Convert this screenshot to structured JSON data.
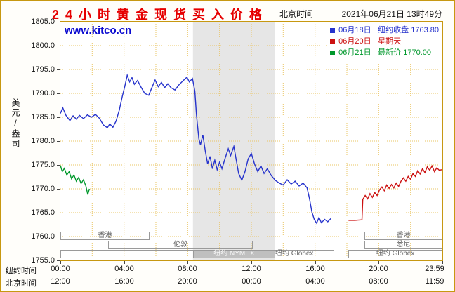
{
  "header": {
    "title": "24小时黄金现货买入价格",
    "timezone_label": "北京时间",
    "datetime": "2021年06月21日 13时49分"
  },
  "watermark": "www.kitco.cn",
  "colors": {
    "border": "#c79810",
    "grid": "#e9c462",
    "shaded_band": "#e6e6e6",
    "title_red": "#e60000",
    "watermark_blue": "#0b0bd0",
    "blue_line": "#2633cc",
    "red_line": "#cc1111",
    "green_line": "#00982c",
    "session_border": "#9a9a9a",
    "nymex_fill": "#bfbfbf"
  },
  "legend": {
    "items": [
      {
        "date": "06月18日",
        "desc": "纽约收盘 1763.80",
        "color": "#2633cc"
      },
      {
        "date": "06月20日",
        "desc": "星期天",
        "color": "#cc1111"
      },
      {
        "date": "06月21日",
        "desc": "最新价 1770.00",
        "color": "#00982c"
      }
    ]
  },
  "y_axis": {
    "label": "美元/盎司",
    "ticks": [
      "1805.0",
      "1800.0",
      "1795.0",
      "1790.0",
      "1785.0",
      "1780.0",
      "1775.0",
      "1770.0",
      "1765.0",
      "1760.0",
      "1755.0"
    ]
  },
  "x_axis": {
    "ny_label": "纽约时间",
    "bj_label": "北京时间",
    "tick_hours": [
      0,
      4,
      8,
      12,
      16,
      20,
      23.983
    ],
    "ny_ticks": [
      "00:00",
      "04:00",
      "08:00",
      "12:00",
      "16:00",
      "20:00",
      "23:59"
    ],
    "bj_ticks": [
      "12:00",
      "16:00",
      "20:00",
      "00:00",
      "04:00",
      "08:00",
      "11:59"
    ]
  },
  "sessions": [
    {
      "label": "香港",
      "row": 0,
      "start": 0,
      "end": 5.6,
      "fill": "none",
      "text": "#666666"
    },
    {
      "label": "香港",
      "row": 0,
      "start": 19.1,
      "end": 24,
      "fill": "none",
      "text": "#666666"
    },
    {
      "label": "伦敦",
      "row": 1,
      "start": 3,
      "end": 12.1,
      "fill": "none",
      "text": "#666666"
    },
    {
      "label": "悉尼",
      "row": 1,
      "start": 19.1,
      "end": 24,
      "fill": "none",
      "text": "#666666"
    },
    {
      "label": "纽约 Globex",
      "row": 2,
      "start": 0,
      "end": 17.2,
      "fill": "none",
      "text": "#666666",
      "label_t": 14.7
    },
    {
      "label": "纽约 NYMEX",
      "row": 2,
      "start": 8.33,
      "end": 13.5,
      "fill": "#bfbfbf",
      "text": "#f6f6f6"
    },
    {
      "label": "纽约 Globex",
      "row": 2,
      "start": 18.1,
      "end": 24,
      "fill": "none",
      "text": "#666666"
    }
  ],
  "chart_data": {
    "type": "line",
    "title": "24小时黄金现货买入价格",
    "ylabel": "美元/盎司",
    "ylim": [
      1755,
      1805
    ],
    "x_range_hours": [
      0,
      24
    ],
    "x_axis_note": "纽约时间 00:00-23:59 / 北京时间 12:00-11:59",
    "ny_close": 1763.8,
    "latest_price": 1770.0,
    "grid": true,
    "y_gridlines": [
      1760,
      1765,
      1770,
      1775,
      1780,
      1785,
      1790,
      1795,
      1800
    ],
    "x_gridlines": [
      2,
      4,
      6,
      8,
      10,
      12,
      14,
      16,
      18,
      20,
      22
    ],
    "shaded_region": {
      "start": 8.33,
      "end": 13.5
    },
    "series": [
      {
        "id": "jun18",
        "name": "06月18日 纽约收盘 1763.80",
        "color": "#2633cc",
        "points": [
          [
            0.0,
            1785.8
          ],
          [
            0.15,
            1787.0
          ],
          [
            0.35,
            1785.4
          ],
          [
            0.6,
            1784.3
          ],
          [
            0.8,
            1785.3
          ],
          [
            1.0,
            1784.6
          ],
          [
            1.2,
            1785.4
          ],
          [
            1.45,
            1784.7
          ],
          [
            1.7,
            1785.5
          ],
          [
            1.95,
            1785.0
          ],
          [
            2.2,
            1785.6
          ],
          [
            2.45,
            1784.8
          ],
          [
            2.7,
            1783.4
          ],
          [
            2.95,
            1782.8
          ],
          [
            3.1,
            1783.6
          ],
          [
            3.3,
            1782.9
          ],
          [
            3.5,
            1784.2
          ],
          [
            3.7,
            1786.5
          ],
          [
            3.9,
            1789.5
          ],
          [
            4.05,
            1791.5
          ],
          [
            4.2,
            1793.8
          ],
          [
            4.35,
            1792.4
          ],
          [
            4.5,
            1793.3
          ],
          [
            4.65,
            1791.9
          ],
          [
            4.85,
            1792.7
          ],
          [
            5.05,
            1791.4
          ],
          [
            5.3,
            1790.0
          ],
          [
            5.55,
            1789.6
          ],
          [
            5.75,
            1791.2
          ],
          [
            5.95,
            1792.8
          ],
          [
            6.15,
            1791.4
          ],
          [
            6.35,
            1792.3
          ],
          [
            6.55,
            1791.2
          ],
          [
            6.75,
            1792.0
          ],
          [
            6.95,
            1791.2
          ],
          [
            7.2,
            1790.7
          ],
          [
            7.45,
            1791.8
          ],
          [
            7.7,
            1792.6
          ],
          [
            7.95,
            1793.4
          ],
          [
            8.1,
            1792.4
          ],
          [
            8.3,
            1793.1
          ],
          [
            8.45,
            1790.5
          ],
          [
            8.55,
            1785.5
          ],
          [
            8.7,
            1780.5
          ],
          [
            8.8,
            1779.2
          ],
          [
            8.95,
            1781.3
          ],
          [
            9.1,
            1778.0
          ],
          [
            9.25,
            1775.2
          ],
          [
            9.4,
            1776.8
          ],
          [
            9.55,
            1774.2
          ],
          [
            9.7,
            1776.0
          ],
          [
            9.85,
            1774.0
          ],
          [
            10.0,
            1775.6
          ],
          [
            10.15,
            1774.2
          ],
          [
            10.35,
            1776.4
          ],
          [
            10.55,
            1778.4
          ],
          [
            10.7,
            1777.0
          ],
          [
            10.9,
            1778.9
          ],
          [
            11.05,
            1776.0
          ],
          [
            11.2,
            1773.2
          ],
          [
            11.4,
            1771.8
          ],
          [
            11.6,
            1773.6
          ],
          [
            11.8,
            1776.3
          ],
          [
            12.0,
            1777.4
          ],
          [
            12.2,
            1775.2
          ],
          [
            12.4,
            1773.6
          ],
          [
            12.6,
            1774.8
          ],
          [
            12.8,
            1773.2
          ],
          [
            13.0,
            1774.2
          ],
          [
            13.25,
            1772.8
          ],
          [
            13.5,
            1771.8
          ],
          [
            13.75,
            1771.2
          ],
          [
            14.0,
            1770.8
          ],
          [
            14.25,
            1771.9
          ],
          [
            14.5,
            1771.0
          ],
          [
            14.75,
            1771.6
          ],
          [
            15.0,
            1770.6
          ],
          [
            15.25,
            1771.2
          ],
          [
            15.5,
            1770.2
          ],
          [
            15.65,
            1768.0
          ],
          [
            15.8,
            1765.2
          ],
          [
            15.95,
            1763.6
          ],
          [
            16.1,
            1762.8
          ],
          [
            16.25,
            1764.0
          ],
          [
            16.4,
            1762.9
          ],
          [
            16.6,
            1763.6
          ],
          [
            16.8,
            1763.1
          ],
          [
            17.0,
            1763.8
          ]
        ]
      },
      {
        "id": "jun20",
        "name": "06月20日 星期天",
        "color": "#cc1111",
        "points": [
          [
            18.1,
            1763.4
          ],
          [
            18.5,
            1763.4
          ],
          [
            18.95,
            1763.5
          ],
          [
            19.0,
            1767.8
          ],
          [
            19.15,
            1768.6
          ],
          [
            19.3,
            1767.9
          ],
          [
            19.45,
            1769.0
          ],
          [
            19.6,
            1768.2
          ],
          [
            19.75,
            1769.2
          ],
          [
            19.9,
            1768.6
          ],
          [
            20.05,
            1769.8
          ],
          [
            20.2,
            1770.4
          ],
          [
            20.35,
            1769.6
          ],
          [
            20.5,
            1770.8
          ],
          [
            20.65,
            1770.1
          ],
          [
            20.8,
            1770.9
          ],
          [
            20.95,
            1770.2
          ],
          [
            21.1,
            1771.2
          ],
          [
            21.25,
            1770.5
          ],
          [
            21.4,
            1771.6
          ],
          [
            21.55,
            1772.3
          ],
          [
            21.7,
            1771.6
          ],
          [
            21.85,
            1772.6
          ],
          [
            22.0,
            1772.0
          ],
          [
            22.15,
            1773.2
          ],
          [
            22.3,
            1772.6
          ],
          [
            22.45,
            1773.8
          ],
          [
            22.6,
            1773.1
          ],
          [
            22.75,
            1774.2
          ],
          [
            22.9,
            1773.4
          ],
          [
            23.05,
            1774.6
          ],
          [
            23.2,
            1773.9
          ],
          [
            23.35,
            1774.8
          ],
          [
            23.5,
            1773.6
          ],
          [
            23.65,
            1774.4
          ],
          [
            23.8,
            1773.9
          ],
          [
            23.97,
            1774.0
          ]
        ]
      },
      {
        "id": "jun21",
        "name": "06月21日 最新价 1770.00",
        "color": "#00982c",
        "points": [
          [
            0.0,
            1774.9
          ],
          [
            0.12,
            1773.6
          ],
          [
            0.25,
            1774.3
          ],
          [
            0.4,
            1772.9
          ],
          [
            0.55,
            1773.6
          ],
          [
            0.7,
            1772.1
          ],
          [
            0.85,
            1772.9
          ],
          [
            1.0,
            1771.6
          ],
          [
            1.15,
            1772.4
          ],
          [
            1.3,
            1771.1
          ],
          [
            1.45,
            1771.9
          ],
          [
            1.6,
            1770.6
          ],
          [
            1.72,
            1768.8
          ],
          [
            1.82,
            1770.0
          ]
        ]
      }
    ]
  }
}
